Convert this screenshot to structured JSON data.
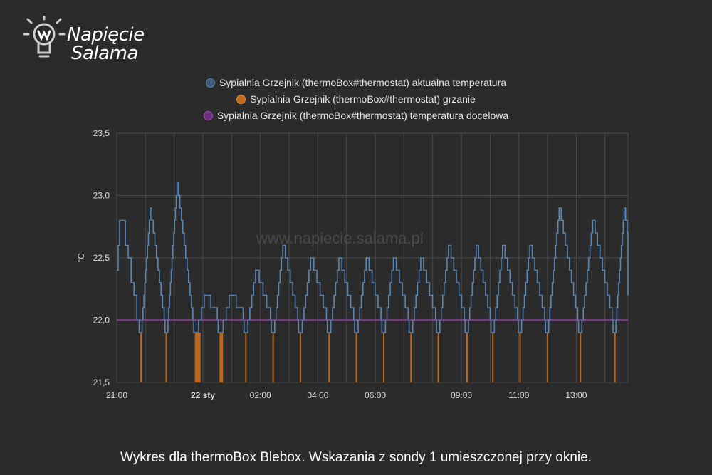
{
  "logo": {
    "line1": "Napięcie",
    "line2": "Salama"
  },
  "watermark": "www.napiecie.salama.pl",
  "caption": "Wykres dla thermoBox Blebox. Wskazania z sondy 1 umieszczonej przy oknie.",
  "colors": {
    "background": "#2b2b2c",
    "grid": "#4a4a4c",
    "current": "#5a85b3",
    "heating": "#c46a1a",
    "target": "#a24fb0"
  },
  "chart_data": {
    "type": "line",
    "ylabel": "°C",
    "ylim": [
      21.5,
      23.5
    ],
    "yticks": [
      "21,5",
      "22,0",
      "22,5",
      "23,0",
      "23,5"
    ],
    "xlim": [
      21.0,
      38.8
    ],
    "xticks": [
      {
        "t": 21.0,
        "label": "21:00",
        "bold": false
      },
      {
        "t": 24.0,
        "label": "22 sty",
        "bold": true
      },
      {
        "t": 26.0,
        "label": "02:00",
        "bold": false
      },
      {
        "t": 28.0,
        "label": "04:00",
        "bold": false
      },
      {
        "t": 30.0,
        "label": "06:00",
        "bold": false
      },
      {
        "t": 33.0,
        "label": "09:00",
        "bold": false
      },
      {
        "t": 35.0,
        "label": "11:00",
        "bold": false
      },
      {
        "t": 37.0,
        "label": "13:00",
        "bold": false
      }
    ],
    "gridlines_x": [
      21.0,
      22.0,
      23.0,
      24.0,
      25.0,
      26.0,
      27.0,
      28.0,
      29.0,
      30.0,
      31.0,
      32.0,
      33.0,
      34.0,
      35.0,
      36.0,
      37.0,
      38.0
    ],
    "legend_position": "top",
    "series": [
      {
        "name": "Sypialnia Grzejnik (thermoBox#thermostat) aktualna temperatura",
        "color": "#5a85b3",
        "type": "step",
        "cycles": [
          {
            "min_t": 21.8,
            "peak": 22.9
          },
          {
            "min_t": 22.7,
            "peak": 23.1
          },
          {
            "min_t": 23.7,
            "peak": 22.2
          },
          {
            "min_t": 24.55,
            "peak": 22.2
          },
          {
            "min_t": 25.45,
            "peak": 22.4
          },
          {
            "min_t": 26.4,
            "peak": 22.6
          },
          {
            "min_t": 27.35,
            "peak": 22.5
          },
          {
            "min_t": 28.35,
            "peak": 22.5
          },
          {
            "min_t": 29.3,
            "peak": 22.5
          },
          {
            "min_t": 30.25,
            "peak": 22.5
          },
          {
            "min_t": 31.2,
            "peak": 22.5
          },
          {
            "min_t": 32.15,
            "peak": 22.6
          },
          {
            "min_t": 33.15,
            "peak": 22.6
          },
          {
            "min_t": 34.05,
            "peak": 22.6
          },
          {
            "min_t": 35.0,
            "peak": 22.6
          },
          {
            "min_t": 35.95,
            "peak": 22.9
          },
          {
            "min_t": 37.1,
            "peak": 22.8
          },
          {
            "min_t": 38.3,
            "peak": 22.9
          }
        ],
        "start_value": 22.4,
        "start_peak": 22.8,
        "end_value": 22.2,
        "min_value": 21.9
      },
      {
        "name": "Sypialnia Grzejnik (thermoBox#thermostat) grzanie",
        "color": "#c46a1a",
        "type": "bar",
        "pulses": [
          {
            "t": 21.82,
            "w": 0.06
          },
          {
            "t": 22.7,
            "w": 0.05
          },
          {
            "t": 23.72,
            "w": 0.2
          },
          {
            "t": 24.58,
            "w": 0.12
          },
          {
            "t": 25.47,
            "w": 0.05
          },
          {
            "t": 26.42,
            "w": 0.05
          },
          {
            "t": 27.37,
            "w": 0.05
          },
          {
            "t": 28.37,
            "w": 0.05
          },
          {
            "t": 29.32,
            "w": 0.05
          },
          {
            "t": 30.27,
            "w": 0.05
          },
          {
            "t": 31.22,
            "w": 0.05
          },
          {
            "t": 32.17,
            "w": 0.05
          },
          {
            "t": 33.17,
            "w": 0.05
          },
          {
            "t": 34.07,
            "w": 0.05
          },
          {
            "t": 35.02,
            "w": 0.05
          },
          {
            "t": 35.97,
            "w": 0.05
          },
          {
            "t": 37.12,
            "w": 0.05
          },
          {
            "t": 38.32,
            "w": 0.05
          }
        ],
        "level": 21.9
      },
      {
        "name": "Sypialnia Grzejnik (thermoBox#thermostat) temperatura docelowa",
        "color": "#a24fb0",
        "type": "line",
        "values": [
          22.0,
          22.0
        ]
      }
    ]
  }
}
